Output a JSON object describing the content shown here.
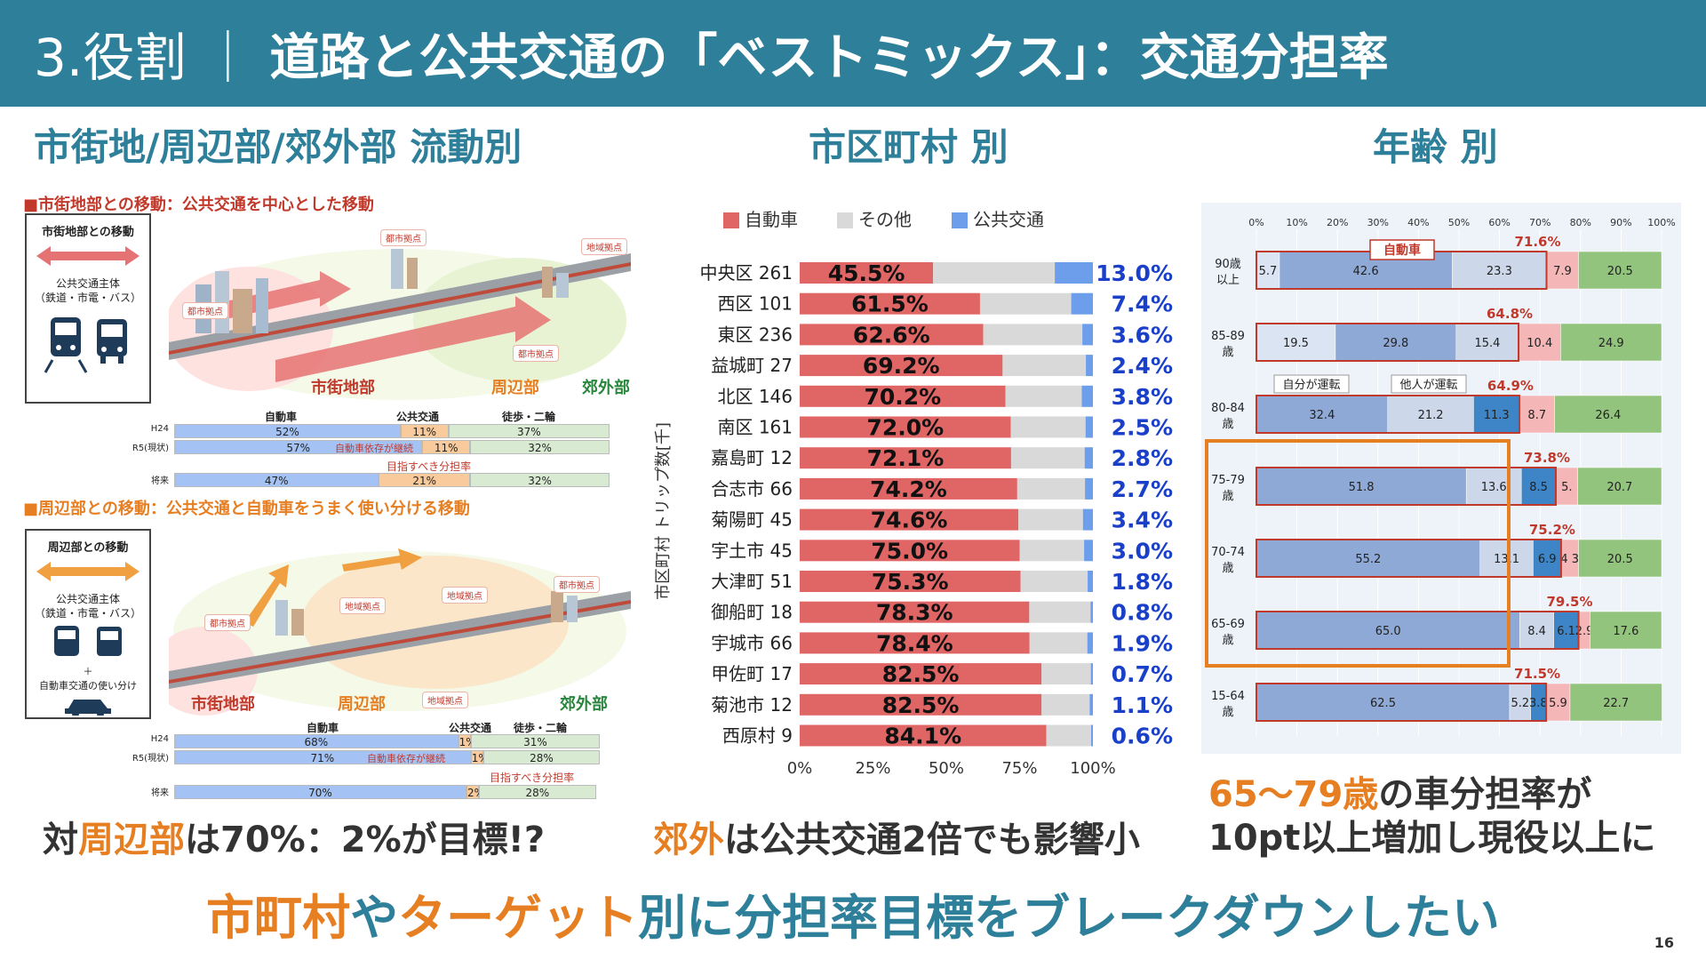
{
  "header": {
    "num": "3.役割",
    "sep": "｜",
    "title": "道路と公共交通の「ベストミックス」：交通分担率"
  },
  "sections": {
    "left": "市街地/周辺部/郊外部 流動別",
    "middle": "市区町村 別",
    "right": "年齢 別"
  },
  "left_panel": {
    "upper": {
      "heading": "■市街地部との移動：公共交通を中心とした移動",
      "box_title": "市街地部との移動",
      "box_sub": [
        "公共交通主体",
        "（鉄道・市電・バス）"
      ],
      "tags": [
        "都市拠点",
        "地域拠点",
        "都市拠点",
        "都市拠点"
      ],
      "zones": [
        "市街地部",
        "周辺部",
        "郊外部"
      ],
      "table_header": [
        "自動車",
        "公共交通",
        "徒歩・二輪"
      ],
      "rows": [
        {
          "label": "H24",
          "car": "52%",
          "pt": "11%",
          "walk": "37%",
          "car_v": 52,
          "pt_v": 11,
          "walk_v": 37
        },
        {
          "label": "R5(現状)",
          "car": "57%",
          "pt": "11%",
          "walk": "32%",
          "car_v": 57,
          "pt_v": 11,
          "walk_v": 32
        },
        {
          "label": "将来",
          "car": "47%",
          "pt": "21%",
          "walk": "32%",
          "car_v": 47,
          "pt_v": 21,
          "walk_v": 32
        }
      ],
      "note": "自動車依存が継続",
      "target": "目指すべき分担率"
    },
    "lower": {
      "heading": "■周辺部との移動：公共交通と自動車をうまく使い分ける移動",
      "box_title": "周辺部との移動",
      "box_sub": [
        "公共交通主体",
        "（鉄道・市電・バス）",
        "＋",
        "自動車交通の使い分け"
      ],
      "tags": [
        "都市拠点",
        "地域拠点",
        "地域拠点",
        "都市拠点",
        "地域拠点"
      ],
      "zones": [
        "市街地部",
        "周辺部",
        "郊外部"
      ],
      "table_header": [
        "自動車",
        "公共交通",
        "徒歩・二輪"
      ],
      "rows": [
        {
          "label": "H24",
          "car": "68%",
          "pt": "1%",
          "walk": "31%",
          "car_v": 68,
          "pt_v": 1,
          "walk_v": 31
        },
        {
          "label": "R5(現状)",
          "car": "71%",
          "pt": "1%",
          "walk": "28%",
          "car_v": 71,
          "pt_v": 1,
          "walk_v": 28
        },
        {
          "label": "将来",
          "car": "70%",
          "pt": "2%",
          "walk": "28%",
          "car_v": 70,
          "pt_v": 2,
          "walk_v": 28
        }
      ],
      "note": "自動車依存が継続",
      "target": "目指すべき分担率"
    }
  },
  "chart_data": [
    {
      "type": "bar",
      "orientation": "horizontal",
      "stacked": true,
      "title": "市区町村 別",
      "ylabel": "市区町村 トリップ数[千]",
      "legend": [
        "自動車",
        "その他",
        "公共交通"
      ],
      "colors": {
        "car": "#e06666",
        "other": "#d9d9d9",
        "public": "#6d9eeb"
      },
      "xticks": [
        "0%",
        "25%",
        "50%",
        "75%",
        "100%"
      ],
      "xlim": [
        0,
        100
      ],
      "categories": [
        "中央区 261",
        "西区 101",
        "東区 236",
        "益城町 27",
        "北区 146",
        "南区 161",
        "嘉島町 12",
        "合志市 66",
        "菊陽町 45",
        "宇土市 45",
        "大津町 51",
        "御船町 18",
        "宇城市 66",
        "甲佐町 17",
        "菊池市 12",
        "西原村 9"
      ],
      "series": [
        {
          "name": "自動車",
          "values": [
            45.5,
            61.5,
            62.6,
            69.2,
            70.2,
            72.0,
            72.1,
            74.2,
            74.6,
            75.0,
            75.3,
            78.3,
            78.4,
            82.5,
            82.5,
            84.1
          ]
        },
        {
          "name": "その他",
          "values": [
            41.5,
            31.1,
            33.8,
            28.4,
            26.0,
            25.5,
            25.1,
            23.1,
            22.0,
            22.0,
            22.9,
            20.9,
            19.7,
            16.8,
            16.4,
            15.3
          ]
        },
        {
          "name": "公共交通",
          "values": [
            13.0,
            7.4,
            3.6,
            2.4,
            3.8,
            2.5,
            2.8,
            2.7,
            3.4,
            3.0,
            1.8,
            0.8,
            1.9,
            0.7,
            1.1,
            0.6
          ]
        }
      ],
      "car_labels": [
        "45.5%",
        "61.5%",
        "62.6%",
        "69.2%",
        "70.2%",
        "72.0%",
        "72.1%",
        "74.2%",
        "74.6%",
        "75.0%",
        "75.3%",
        "78.3%",
        "78.4%",
        "82.5%",
        "82.5%",
        "84.1%"
      ],
      "public_labels": [
        "13.0%",
        "7.4%",
        "3.6%",
        "2.4%",
        "3.8%",
        "2.5%",
        "2.8%",
        "2.7%",
        "3.4%",
        "3.0%",
        "1.8%",
        "0.8%",
        "1.9%",
        "0.7%",
        "1.1%",
        "0.6%"
      ]
    },
    {
      "type": "bar",
      "orientation": "horizontal",
      "stacked": true,
      "title": "年齢 別",
      "xticks": [
        "0%",
        "10%",
        "20%",
        "30%",
        "40%",
        "50%",
        "60%",
        "70%",
        "80%",
        "90%",
        "100%"
      ],
      "xlim": [
        0,
        100
      ],
      "categories": [
        "90歳以上",
        "85-89歳",
        "80-84歳",
        "75-79歳",
        "70-74歳",
        "65-69歳",
        "15-64歳"
      ],
      "category_lines": [
        [
          "90歳",
          "以上"
        ],
        [
          "85-89",
          "歳"
        ],
        [
          "80-84",
          "歳"
        ],
        [
          "75-79",
          "歳"
        ],
        [
          "70-74",
          "歳"
        ],
        [
          "65-69",
          "歳"
        ],
        [
          "15-64",
          "歳"
        ]
      ],
      "segment_names": [
        "自分が運転(1)",
        "自分が運転(2)",
        "他人が運転",
        "その他",
        "公共交通",
        "徒歩・二輪"
      ],
      "colors": [
        "#dbe4f3",
        "#8fa9d6",
        "#ccd7ea",
        "#3d85c6",
        "#f4b6b6",
        "#93c47d"
      ],
      "rows": [
        {
          "values": [
            5.7,
            42.6,
            23.3,
            0,
            7.9,
            20.5
          ],
          "labels": [
            "5.7",
            "42.6",
            "23.3",
            "",
            "7.9",
            "20.5"
          ],
          "car_total": "71.6%"
        },
        {
          "values": [
            19.5,
            29.8,
            15.4,
            0,
            10.4,
            24.9
          ],
          "labels": [
            "19.5",
            "29.8",
            "15.4",
            "",
            "10.4",
            "24.9"
          ],
          "car_total": "64.8%"
        },
        {
          "values": [
            0,
            32.4,
            21.2,
            11.3,
            8.7,
            26.4
          ],
          "labels": [
            "",
            "32.4",
            "21.2",
            "11.3",
            "8.7",
            "26.4"
          ],
          "car_total": "64.9%"
        },
        {
          "values": [
            0,
            51.8,
            13.6,
            8.5,
            5.4,
            20.7
          ],
          "labels": [
            "",
            "51.8",
            "13.6",
            "8.5",
            "5.",
            "20.7"
          ],
          "car_total": "73.8%"
        },
        {
          "values": [
            0,
            55.2,
            13.1,
            6.9,
            4.3,
            20.5
          ],
          "labels": [
            "",
            "55.2",
            "13.1",
            "6.9",
            "4 3",
            "20.5"
          ],
          "car_total": "75.2%"
        },
        {
          "values": [
            0,
            65.0,
            8.4,
            6.1,
            2.9,
            17.6
          ],
          "labels": [
            "",
            "65.0",
            "8.4",
            "6.1",
            "2.9",
            "17.6"
          ],
          "car_total": "79.5%"
        },
        {
          "values": [
            0,
            62.5,
            5.2,
            3.8,
            5.9,
            22.7
          ],
          "labels": [
            "",
            "62.5",
            "5.2",
            "3.8",
            "5.9",
            "22.7"
          ],
          "car_total": "71.5%"
        }
      ],
      "annotations": {
        "car_box": "自動車",
        "self_drive": "自分が運転",
        "other_drive": "他人が運転"
      }
    }
  ],
  "bottom": {
    "left_pre": "対",
    "left_hl": "周辺部",
    "left_post": "は70%：2%が目標!?",
    "mid_hl": "郊外",
    "mid_post": "は公共交通2倍でも影響小",
    "right_hl": "65～79歳",
    "right_post1": "の車分担率が",
    "right_line2": "10pt以上増加し現役以上に"
  },
  "conclusion": {
    "p1": "市町村",
    "p2": "や",
    "p3": "ターゲット",
    "p4": "別に分担率目標をブレークダウンしたい"
  },
  "page_number": "16"
}
